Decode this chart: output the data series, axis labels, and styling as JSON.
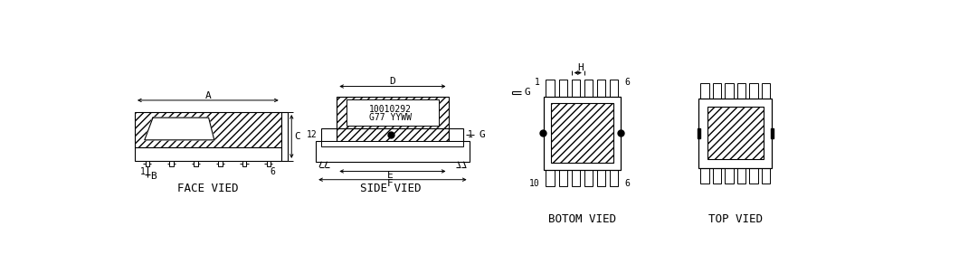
{
  "bg_color": "#ffffff",
  "line_color": "#000000",
  "labels": {
    "face_view": "FACE VIED",
    "side_view": "SIDE VIED",
    "bottom_view": "BOTOM VIED",
    "top_view": "TOP VIED",
    "dim_A": "A",
    "dim_B": "B",
    "dim_C": "C",
    "dim_D": "D",
    "dim_E": "E",
    "dim_F": "F",
    "dim_G": "G",
    "dim_H": "H",
    "label_1_face": "1",
    "label_6_face": "6",
    "label_12_side": "12",
    "label_1_side": "1",
    "label_1_bot_top": "1",
    "label_6_bot_top": "6",
    "label_10_bot": "10",
    "label_6_bot_bot": "6",
    "code1": "10010292",
    "code2": "G77 YYWW"
  },
  "font_size": 7,
  "label_font_size": 8,
  "title_font_size": 9
}
